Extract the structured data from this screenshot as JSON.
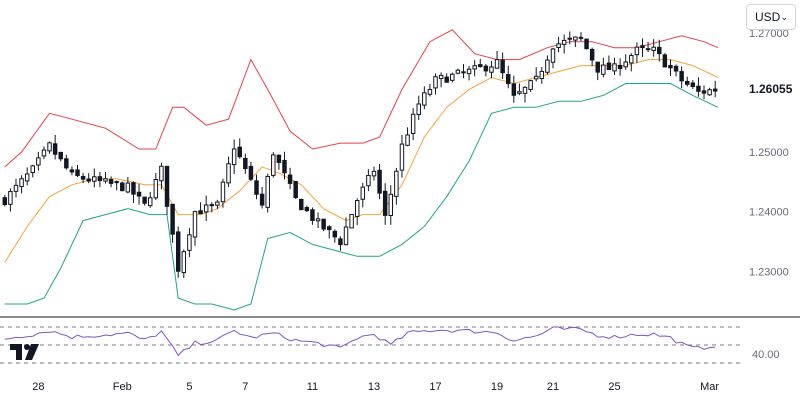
{
  "currency": {
    "label": "USD",
    "chevron_icon": "chevron-down-icon"
  },
  "logo": {
    "icon": "tradingview-logo-icon"
  },
  "colors": {
    "candle": "#131722",
    "upper_band": "#e8404c",
    "middle_band": "#f7a23a",
    "lower_band": "#22a48e",
    "rsi_line": "#7e57c2",
    "grid_dashed": "#787b86"
  },
  "chart_data": {
    "type": "candlestick",
    "indicators": [
      "Bollinger Bands",
      "RSI"
    ],
    "price_axis": {
      "ticks": [
        "1.27000",
        "1.26055",
        "1.25000",
        "1.24000",
        "1.23000"
      ],
      "tick_values": [
        1.27,
        1.26055,
        1.25,
        1.24,
        1.23
      ],
      "range": [
        1.2235,
        1.2755
      ]
    },
    "last_price": {
      "label": "1.26055",
      "value": 1.26055
    },
    "x_axis": {
      "labels": [
        "28",
        "Feb",
        "5",
        "7",
        "11",
        "13",
        "17",
        "19",
        "21",
        "25",
        "Mar"
      ],
      "label_candle_index": [
        6,
        21,
        33,
        43,
        55,
        66,
        77,
        88,
        98,
        109,
        126
      ]
    },
    "candle_count": 128,
    "close_anchors": [
      [
        0,
        1.242
      ],
      [
        5,
        1.247
      ],
      [
        8,
        1.251
      ],
      [
        12,
        1.246
      ],
      [
        17,
        1.245
      ],
      [
        22,
        1.244
      ],
      [
        25,
        1.241
      ],
      [
        28,
        1.247
      ],
      [
        31,
        1.2305
      ],
      [
        34,
        1.24
      ],
      [
        38,
        1.241
      ],
      [
        41,
        1.251
      ],
      [
        44,
        1.245
      ],
      [
        46,
        1.241
      ],
      [
        48,
        1.25
      ],
      [
        52,
        1.242
      ],
      [
        56,
        1.238
      ],
      [
        60,
        1.235
      ],
      [
        63,
        1.242
      ],
      [
        66,
        1.247
      ],
      [
        68,
        1.239
      ],
      [
        71,
        1.251
      ],
      [
        74,
        1.258
      ],
      [
        77,
        1.262
      ],
      [
        81,
        1.263
      ],
      [
        85,
        1.264
      ],
      [
        88,
        1.265
      ],
      [
        91,
        1.259
      ],
      [
        95,
        1.262
      ],
      [
        98,
        1.268
      ],
      [
        103,
        1.269
      ],
      [
        106,
        1.264
      ],
      [
        109,
        1.264
      ],
      [
        113,
        1.267
      ],
      [
        116,
        1.267
      ],
      [
        119,
        1.264
      ],
      [
        121,
        1.262
      ],
      [
        124,
        1.26
      ],
      [
        127,
        1.2605
      ]
    ],
    "bollinger_upper": [
      [
        0,
        1.2475
      ],
      [
        3,
        1.25
      ],
      [
        8,
        1.2565
      ],
      [
        12,
        1.2555
      ],
      [
        18,
        1.254
      ],
      [
        24,
        1.2505
      ],
      [
        27,
        1.2505
      ],
      [
        30,
        1.2575
      ],
      [
        32,
        1.2575
      ],
      [
        36,
        1.2545
      ],
      [
        40,
        1.2555
      ],
      [
        44,
        1.2655
      ],
      [
        47,
        1.2605
      ],
      [
        51,
        1.2535
      ],
      [
        55,
        1.2505
      ],
      [
        60,
        1.2515
      ],
      [
        64,
        1.2515
      ],
      [
        67,
        1.2525
      ],
      [
        71,
        1.2605
      ],
      [
        76,
        1.2685
      ],
      [
        80,
        1.2705
      ],
      [
        84,
        1.2665
      ],
      [
        88,
        1.2655
      ],
      [
        92,
        1.2655
      ],
      [
        97,
        1.2675
      ],
      [
        101,
        1.2685
      ],
      [
        105,
        1.2685
      ],
      [
        109,
        1.2675
      ],
      [
        113,
        1.2675
      ],
      [
        117,
        1.2685
      ],
      [
        121,
        1.2695
      ],
      [
        125,
        1.2685
      ],
      [
        128,
        1.2675
      ]
    ],
    "bollinger_middle": [
      [
        0,
        1.2315
      ],
      [
        4,
        1.2375
      ],
      [
        8,
        1.2425
      ],
      [
        12,
        1.2445
      ],
      [
        16,
        1.2455
      ],
      [
        20,
        1.2455
      ],
      [
        25,
        1.2445
      ],
      [
        28,
        1.2445
      ],
      [
        31,
        1.2395
      ],
      [
        35,
        1.2395
      ],
      [
        38,
        1.2405
      ],
      [
        42,
        1.2435
      ],
      [
        46,
        1.2475
      ],
      [
        49,
        1.2465
      ],
      [
        53,
        1.2445
      ],
      [
        57,
        1.2405
      ],
      [
        61,
        1.2385
      ],
      [
        64,
        1.2395
      ],
      [
        67,
        1.2395
      ],
      [
        71,
        1.2445
      ],
      [
        75,
        1.2525
      ],
      [
        79,
        1.2575
      ],
      [
        83,
        1.2605
      ],
      [
        87,
        1.2625
      ],
      [
        91,
        1.2615
      ],
      [
        95,
        1.2625
      ],
      [
        99,
        1.2635
      ],
      [
        103,
        1.2645
      ],
      [
        107,
        1.2645
      ],
      [
        111,
        1.2645
      ],
      [
        115,
        1.2655
      ],
      [
        119,
        1.2655
      ],
      [
        123,
        1.2645
      ],
      [
        128,
        1.2625
      ]
    ],
    "bollinger_lower": [
      [
        0,
        1.2245
      ],
      [
        4,
        1.2245
      ],
      [
        7,
        1.2255
      ],
      [
        10,
        1.2305
      ],
      [
        14,
        1.2385
      ],
      [
        18,
        1.2395
      ],
      [
        22,
        1.2405
      ],
      [
        26,
        1.2395
      ],
      [
        29,
        1.2395
      ],
      [
        31,
        1.2255
      ],
      [
        34,
        1.2245
      ],
      [
        37,
        1.2245
      ],
      [
        41,
        1.2235
      ],
      [
        44,
        1.2245
      ],
      [
        47,
        1.2355
      ],
      [
        51,
        1.2365
      ],
      [
        55,
        1.2345
      ],
      [
        59,
        1.2335
      ],
      [
        63,
        1.2325
      ],
      [
        67,
        1.2325
      ],
      [
        71,
        1.2345
      ],
      [
        75,
        1.2375
      ],
      [
        79,
        1.2425
      ],
      [
        83,
        1.2485
      ],
      [
        87,
        1.2565
      ],
      [
        91,
        1.2575
      ],
      [
        95,
        1.2575
      ],
      [
        99,
        1.2585
      ],
      [
        103,
        1.2585
      ],
      [
        107,
        1.2595
      ],
      [
        111,
        1.2615
      ],
      [
        115,
        1.2615
      ],
      [
        119,
        1.2615
      ],
      [
        123,
        1.2595
      ],
      [
        128,
        1.2575
      ]
    ],
    "rsi": {
      "tick": "40.00",
      "range": [
        20,
        80
      ],
      "dashed_levels": [
        70,
        50,
        30
      ],
      "anchors": [
        [
          0,
          57
        ],
        [
          5,
          62
        ],
        [
          8,
          66
        ],
        [
          12,
          59
        ],
        [
          17,
          61
        ],
        [
          22,
          63
        ],
        [
          25,
          55
        ],
        [
          28,
          65
        ],
        [
          31,
          38
        ],
        [
          34,
          52
        ],
        [
          38,
          55
        ],
        [
          41,
          66
        ],
        [
          44,
          58
        ],
        [
          48,
          63
        ],
        [
          52,
          55
        ],
        [
          56,
          52
        ],
        [
          60,
          46
        ],
        [
          63,
          58
        ],
        [
          66,
          62
        ],
        [
          69,
          50
        ],
        [
          72,
          63
        ],
        [
          77,
          67
        ],
        [
          81,
          66
        ],
        [
          85,
          65
        ],
        [
          88,
          64
        ],
        [
          91,
          55
        ],
        [
          95,
          60
        ],
        [
          98,
          68
        ],
        [
          103,
          67
        ],
        [
          106,
          61
        ],
        [
          109,
          59
        ],
        [
          113,
          62
        ],
        [
          116,
          62
        ],
        [
          119,
          58
        ],
        [
          122,
          48
        ],
        [
          124,
          46
        ],
        [
          127,
          50
        ]
      ]
    }
  }
}
